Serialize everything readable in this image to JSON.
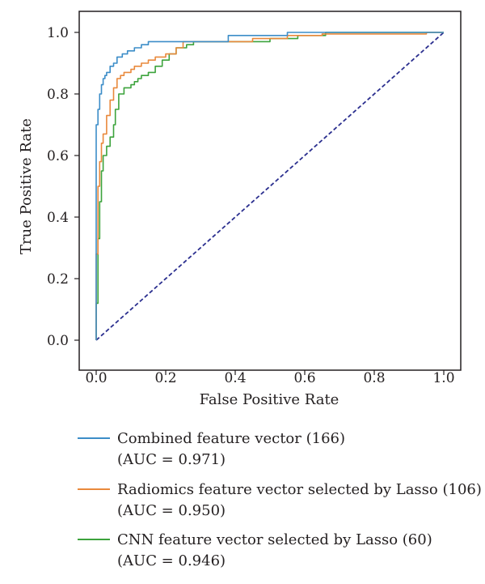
{
  "chart_data": {
    "type": "line",
    "xlabel": "False Positive Rate",
    "ylabel": "True Positive Rate",
    "xlim": [
      0.0,
      1.0
    ],
    "ylim": [
      0.0,
      1.0
    ],
    "x_ticks": [
      "0.0",
      "0.2",
      "0.4",
      "0.6",
      "0.8",
      "1.0"
    ],
    "y_ticks": [
      "0.0",
      "0.2",
      "0.4",
      "0.6",
      "0.8",
      "1.0"
    ],
    "grid": false,
    "legend_position": "bottom",
    "series": [
      {
        "name": "Combined feature vector (166)",
        "auc_label": "(AUC = 0.971)",
        "color": "#3c8dc8",
        "points": [
          [
            0,
            0
          ],
          [
            0,
            0.35
          ],
          [
            0,
            0.7
          ],
          [
            0.005,
            0.7
          ],
          [
            0.005,
            0.75
          ],
          [
            0.01,
            0.75
          ],
          [
            0.01,
            0.8
          ],
          [
            0.015,
            0.8
          ],
          [
            0.015,
            0.83
          ],
          [
            0.02,
            0.83
          ],
          [
            0.02,
            0.85
          ],
          [
            0.025,
            0.85
          ],
          [
            0.025,
            0.86
          ],
          [
            0.03,
            0.86
          ],
          [
            0.03,
            0.87
          ],
          [
            0.04,
            0.87
          ],
          [
            0.04,
            0.89
          ],
          [
            0.05,
            0.89
          ],
          [
            0.05,
            0.9
          ],
          [
            0.06,
            0.9
          ],
          [
            0.06,
            0.92
          ],
          [
            0.075,
            0.92
          ],
          [
            0.075,
            0.93
          ],
          [
            0.09,
            0.93
          ],
          [
            0.09,
            0.94
          ],
          [
            0.11,
            0.94
          ],
          [
            0.11,
            0.95
          ],
          [
            0.13,
            0.95
          ],
          [
            0.13,
            0.96
          ],
          [
            0.15,
            0.96
          ],
          [
            0.15,
            0.97
          ],
          [
            0.38,
            0.97
          ],
          [
            0.38,
            0.99
          ],
          [
            0.55,
            0.99
          ],
          [
            0.55,
            1.0
          ],
          [
            1.0,
            1.0
          ]
        ]
      },
      {
        "name": "Radiomics feature vector selected by Lasso (106)",
        "auc_label": "(AUC = 0.950)",
        "color": "#e9893c",
        "points": [
          [
            0,
            0
          ],
          [
            0,
            0.28
          ],
          [
            0.005,
            0.28
          ],
          [
            0.005,
            0.5
          ],
          [
            0.01,
            0.5
          ],
          [
            0.01,
            0.58
          ],
          [
            0.015,
            0.58
          ],
          [
            0.015,
            0.64
          ],
          [
            0.02,
            0.64
          ],
          [
            0.02,
            0.67
          ],
          [
            0.03,
            0.67
          ],
          [
            0.03,
            0.73
          ],
          [
            0.04,
            0.73
          ],
          [
            0.04,
            0.78
          ],
          [
            0.05,
            0.78
          ],
          [
            0.05,
            0.82
          ],
          [
            0.06,
            0.82
          ],
          [
            0.06,
            0.85
          ],
          [
            0.07,
            0.85
          ],
          [
            0.07,
            0.86
          ],
          [
            0.08,
            0.86
          ],
          [
            0.08,
            0.87
          ],
          [
            0.1,
            0.87
          ],
          [
            0.1,
            0.88
          ],
          [
            0.11,
            0.88
          ],
          [
            0.11,
            0.89
          ],
          [
            0.13,
            0.89
          ],
          [
            0.13,
            0.9
          ],
          [
            0.15,
            0.9
          ],
          [
            0.15,
            0.91
          ],
          [
            0.17,
            0.91
          ],
          [
            0.17,
            0.92
          ],
          [
            0.2,
            0.92
          ],
          [
            0.2,
            0.93
          ],
          [
            0.23,
            0.93
          ],
          [
            0.23,
            0.95
          ],
          [
            0.25,
            0.95
          ],
          [
            0.25,
            0.97
          ],
          [
            0.45,
            0.97
          ],
          [
            0.45,
            0.98
          ],
          [
            0.55,
            0.98
          ],
          [
            0.55,
            0.99
          ],
          [
            0.65,
            0.99
          ],
          [
            0.65,
            0.995
          ],
          [
            0.95,
            0.995
          ],
          [
            0.95,
            1.0
          ],
          [
            1.0,
            1.0
          ]
        ]
      },
      {
        "name": "CNN feature vector selected by Lasso (60)",
        "auc_label": "(AUC = 0.946)",
        "color": "#3ca33c",
        "points": [
          [
            0,
            0
          ],
          [
            0,
            0.12
          ],
          [
            0.005,
            0.12
          ],
          [
            0.005,
            0.33
          ],
          [
            0.01,
            0.33
          ],
          [
            0.01,
            0.45
          ],
          [
            0.015,
            0.45
          ],
          [
            0.015,
            0.55
          ],
          [
            0.02,
            0.55
          ],
          [
            0.02,
            0.6
          ],
          [
            0.03,
            0.6
          ],
          [
            0.03,
            0.63
          ],
          [
            0.04,
            0.63
          ],
          [
            0.04,
            0.66
          ],
          [
            0.05,
            0.66
          ],
          [
            0.05,
            0.7
          ],
          [
            0.055,
            0.7
          ],
          [
            0.055,
            0.75
          ],
          [
            0.065,
            0.75
          ],
          [
            0.065,
            0.8
          ],
          [
            0.08,
            0.8
          ],
          [
            0.08,
            0.82
          ],
          [
            0.1,
            0.82
          ],
          [
            0.1,
            0.83
          ],
          [
            0.11,
            0.83
          ],
          [
            0.11,
            0.84
          ],
          [
            0.12,
            0.84
          ],
          [
            0.12,
            0.85
          ],
          [
            0.13,
            0.85
          ],
          [
            0.13,
            0.86
          ],
          [
            0.15,
            0.86
          ],
          [
            0.15,
            0.87
          ],
          [
            0.17,
            0.87
          ],
          [
            0.17,
            0.89
          ],
          [
            0.19,
            0.89
          ],
          [
            0.19,
            0.91
          ],
          [
            0.21,
            0.91
          ],
          [
            0.21,
            0.93
          ],
          [
            0.23,
            0.93
          ],
          [
            0.23,
            0.95
          ],
          [
            0.26,
            0.95
          ],
          [
            0.26,
            0.96
          ],
          [
            0.28,
            0.96
          ],
          [
            0.28,
            0.97
          ],
          [
            0.5,
            0.97
          ],
          [
            0.5,
            0.98
          ],
          [
            0.58,
            0.98
          ],
          [
            0.58,
            0.99
          ],
          [
            0.66,
            0.99
          ],
          [
            0.66,
            1.0
          ],
          [
            1.0,
            1.0
          ]
        ]
      }
    ],
    "reference_line": {
      "color": "#2b2f8f",
      "style": "dashed",
      "points": [
        [
          0,
          0
        ],
        [
          1,
          1
        ]
      ]
    }
  }
}
